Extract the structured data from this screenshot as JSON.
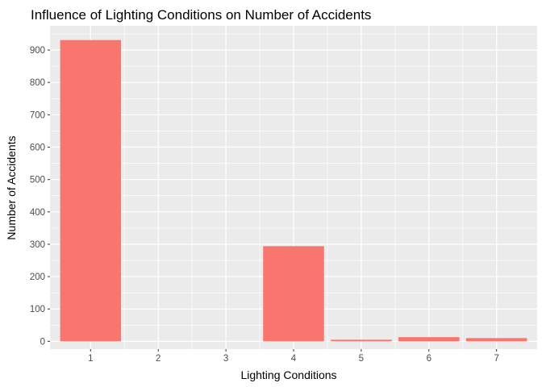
{
  "chart_data": {
    "type": "bar",
    "title": "Influence of Lighting Conditions on Number of Accidents",
    "xlabel": "Lighting Conditions",
    "ylabel": "Number of Accidents",
    "categories": [
      "1",
      "2",
      "3",
      "4",
      "5",
      "6",
      "7"
    ],
    "values": [
      931,
      0,
      0,
      294,
      5,
      13,
      10
    ],
    "ylim": [
      -24,
      975
    ],
    "yticks": [
      "0",
      "100",
      "200",
      "300",
      "400",
      "500",
      "600",
      "700",
      "800",
      "900"
    ],
    "grid": true,
    "legend": "none",
    "colors": {
      "bar": "#F8766D",
      "panel": "#EBEBEB",
      "grid": "#FFFFFF"
    }
  }
}
